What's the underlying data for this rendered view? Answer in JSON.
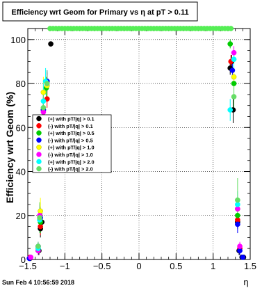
{
  "footer_timestamp": "Sun Feb  4 10:56:59 2018",
  "chart_data": {
    "type": "scatter",
    "title": "Efficiency wrt Geom for Primary vs   η at pT > 0.11",
    "xlabel": "η",
    "ylabel": "Efficiency wrt Geom (%)",
    "xlim": [
      -1.5,
      1.5
    ],
    "ylim": [
      0,
      105
    ],
    "x_ticks": [
      -1.5,
      -1,
      -0.5,
      0,
      0.5,
      1,
      1.5
    ],
    "x_tick_labels": [
      "−1.5",
      "−1",
      "−0.5",
      "0",
      "0.5",
      "1",
      "1.5"
    ],
    "y_ticks": [
      0,
      20,
      40,
      60,
      80,
      100
    ],
    "y_tick_labels": [
      "0",
      "20",
      "40",
      "60",
      "80",
      "100"
    ],
    "grid": true,
    "legend_position": "left-middle",
    "series": [
      {
        "name": "(+) with pT/|q| > 0.1",
        "color": "#000000",
        "marker": "circle",
        "x": [
          -1.47,
          -1.35,
          -1.33,
          -1.31,
          -1.29,
          -1.24,
          -1.19,
          1.23,
          1.25,
          1.27,
          1.33,
          1.35,
          1.39,
          1.41
        ],
        "y": [
          0.5,
          4,
          14,
          17,
          68,
          81,
          98,
          87,
          90,
          68,
          17,
          4,
          1,
          1
        ],
        "err": [
          0.5,
          2,
          4,
          4,
          6,
          4,
          1,
          3,
          3,
          6,
          3,
          2,
          0.5,
          0.5
        ]
      },
      {
        "name": "(-) with pT/|q| > 0.1",
        "color": "#ff0000",
        "marker": "circle",
        "x": [
          -1.47,
          -1.36,
          -1.33,
          -1.29,
          -1.24,
          1.24,
          1.33,
          1.36
        ],
        "y": [
          1,
          5,
          15,
          58,
          73,
          90,
          18,
          5
        ],
        "err": [
          0.5,
          2,
          4,
          6,
          4,
          3,
          3,
          2
        ]
      },
      {
        "name": "(+) with pT/|q| > 0.5",
        "color": "#00cc00",
        "marker": "circle",
        "x": [
          -1.36,
          -1.33,
          -1.29,
          -1.25,
          1.23,
          1.28,
          1.33
        ],
        "y": [
          4,
          17,
          65,
          78,
          98,
          80,
          20
        ],
        "err": [
          2,
          5,
          7,
          5,
          2,
          6,
          5
        ]
      },
      {
        "name": "(-) with pT/|q| > 0.5",
        "color": "#0000ff",
        "marker": "circle",
        "x": [
          -1.48,
          -1.36,
          -1.33,
          -1.29,
          -1.24,
          1.26,
          1.33,
          1.36,
          1.4
        ],
        "y": [
          0.5,
          6,
          19,
          68,
          81,
          86,
          16,
          4,
          1
        ],
        "err": [
          0.5,
          2,
          5,
          7,
          5,
          4,
          4,
          2,
          0.5
        ]
      },
      {
        "name": "(+) with pT/|q| > 1.0",
        "color": "#ffff00",
        "marker": "circle",
        "x": [
          -1.36,
          -1.33,
          -1.29,
          -1.24,
          1.28,
          1.33
        ],
        "y": [
          5,
          22,
          76,
          79,
          83,
          23
        ],
        "err": [
          2,
          6,
          7,
          5,
          5,
          5
        ]
      },
      {
        "name": "(-) with pT/|q| > 1.0",
        "color": "#ff00ff",
        "marker": "circle",
        "x": [
          -1.46,
          -1.36,
          -1.34,
          -1.29,
          -1.24,
          1.28,
          1.33,
          1.36
        ],
        "y": [
          1,
          4,
          20,
          67,
          80,
          94,
          23,
          6
        ],
        "err": [
          0.5,
          2,
          5,
          7,
          5,
          3,
          5,
          2
        ]
      },
      {
        "name": "(+) with pT/|q| > 2.0",
        "color": "#00ffff",
        "marker": "circle",
        "x": [
          -1.36,
          -1.34,
          -1.29,
          -1.26,
          1.23,
          1.28,
          1.33
        ],
        "y": [
          5,
          18,
          72,
          81,
          68,
          91,
          25
        ],
        "err": [
          2,
          6,
          8,
          6,
          5,
          4,
          6
        ]
      },
      {
        "name": "(-) with pT/|q| > 2.0",
        "color": "#66dd66",
        "marker": "circle",
        "x": [
          -1.36,
          -1.34,
          -1.29,
          -1.24,
          1.28,
          1.33
        ],
        "y": [
          6,
          19,
          69,
          80,
          74,
          27
        ],
        "err": [
          2,
          7,
          8,
          6,
          6,
          10
        ]
      },
      {
        "name": "",
        "color": "#55ee55",
        "marker": "circle",
        "role": "geometric-acceptance-line",
        "x": [
          -1.2,
          -1.16,
          -1.12,
          -1.08,
          -1.04,
          -1.0,
          -0.96,
          -0.92,
          -0.88,
          -0.84,
          -0.8,
          -0.76,
          -0.72,
          -0.68,
          -0.64,
          -0.6,
          -0.56,
          -0.52,
          -0.48,
          -0.44,
          -0.4,
          -0.36,
          -0.32,
          -0.28,
          -0.24,
          -0.2,
          -0.16,
          -0.12,
          -0.08,
          -0.04,
          0.0,
          0.04,
          0.08,
          0.12,
          0.16,
          0.2,
          0.24,
          0.28,
          0.32,
          0.36,
          0.4,
          0.44,
          0.48,
          0.52,
          0.56,
          0.6,
          0.64,
          0.68,
          0.72,
          0.76,
          0.8,
          0.84,
          0.88,
          0.92,
          0.96,
          1.0,
          1.04,
          1.08,
          1.12,
          1.16,
          1.2,
          1.24
        ],
        "y": [
          105,
          105,
          105,
          105,
          105,
          105,
          105,
          105,
          105,
          105,
          105,
          105,
          105,
          105,
          105,
          105,
          105,
          105,
          105,
          105,
          105,
          105,
          105,
          105,
          105,
          105,
          105,
          105,
          105,
          105,
          105,
          105,
          105,
          105,
          105,
          105,
          105,
          105,
          105,
          105,
          105,
          105,
          105,
          105,
          105,
          105,
          105,
          105,
          105,
          105,
          105,
          105,
          105,
          105,
          105,
          105,
          105,
          105,
          105,
          105,
          105,
          105
        ],
        "err": []
      }
    ]
  }
}
